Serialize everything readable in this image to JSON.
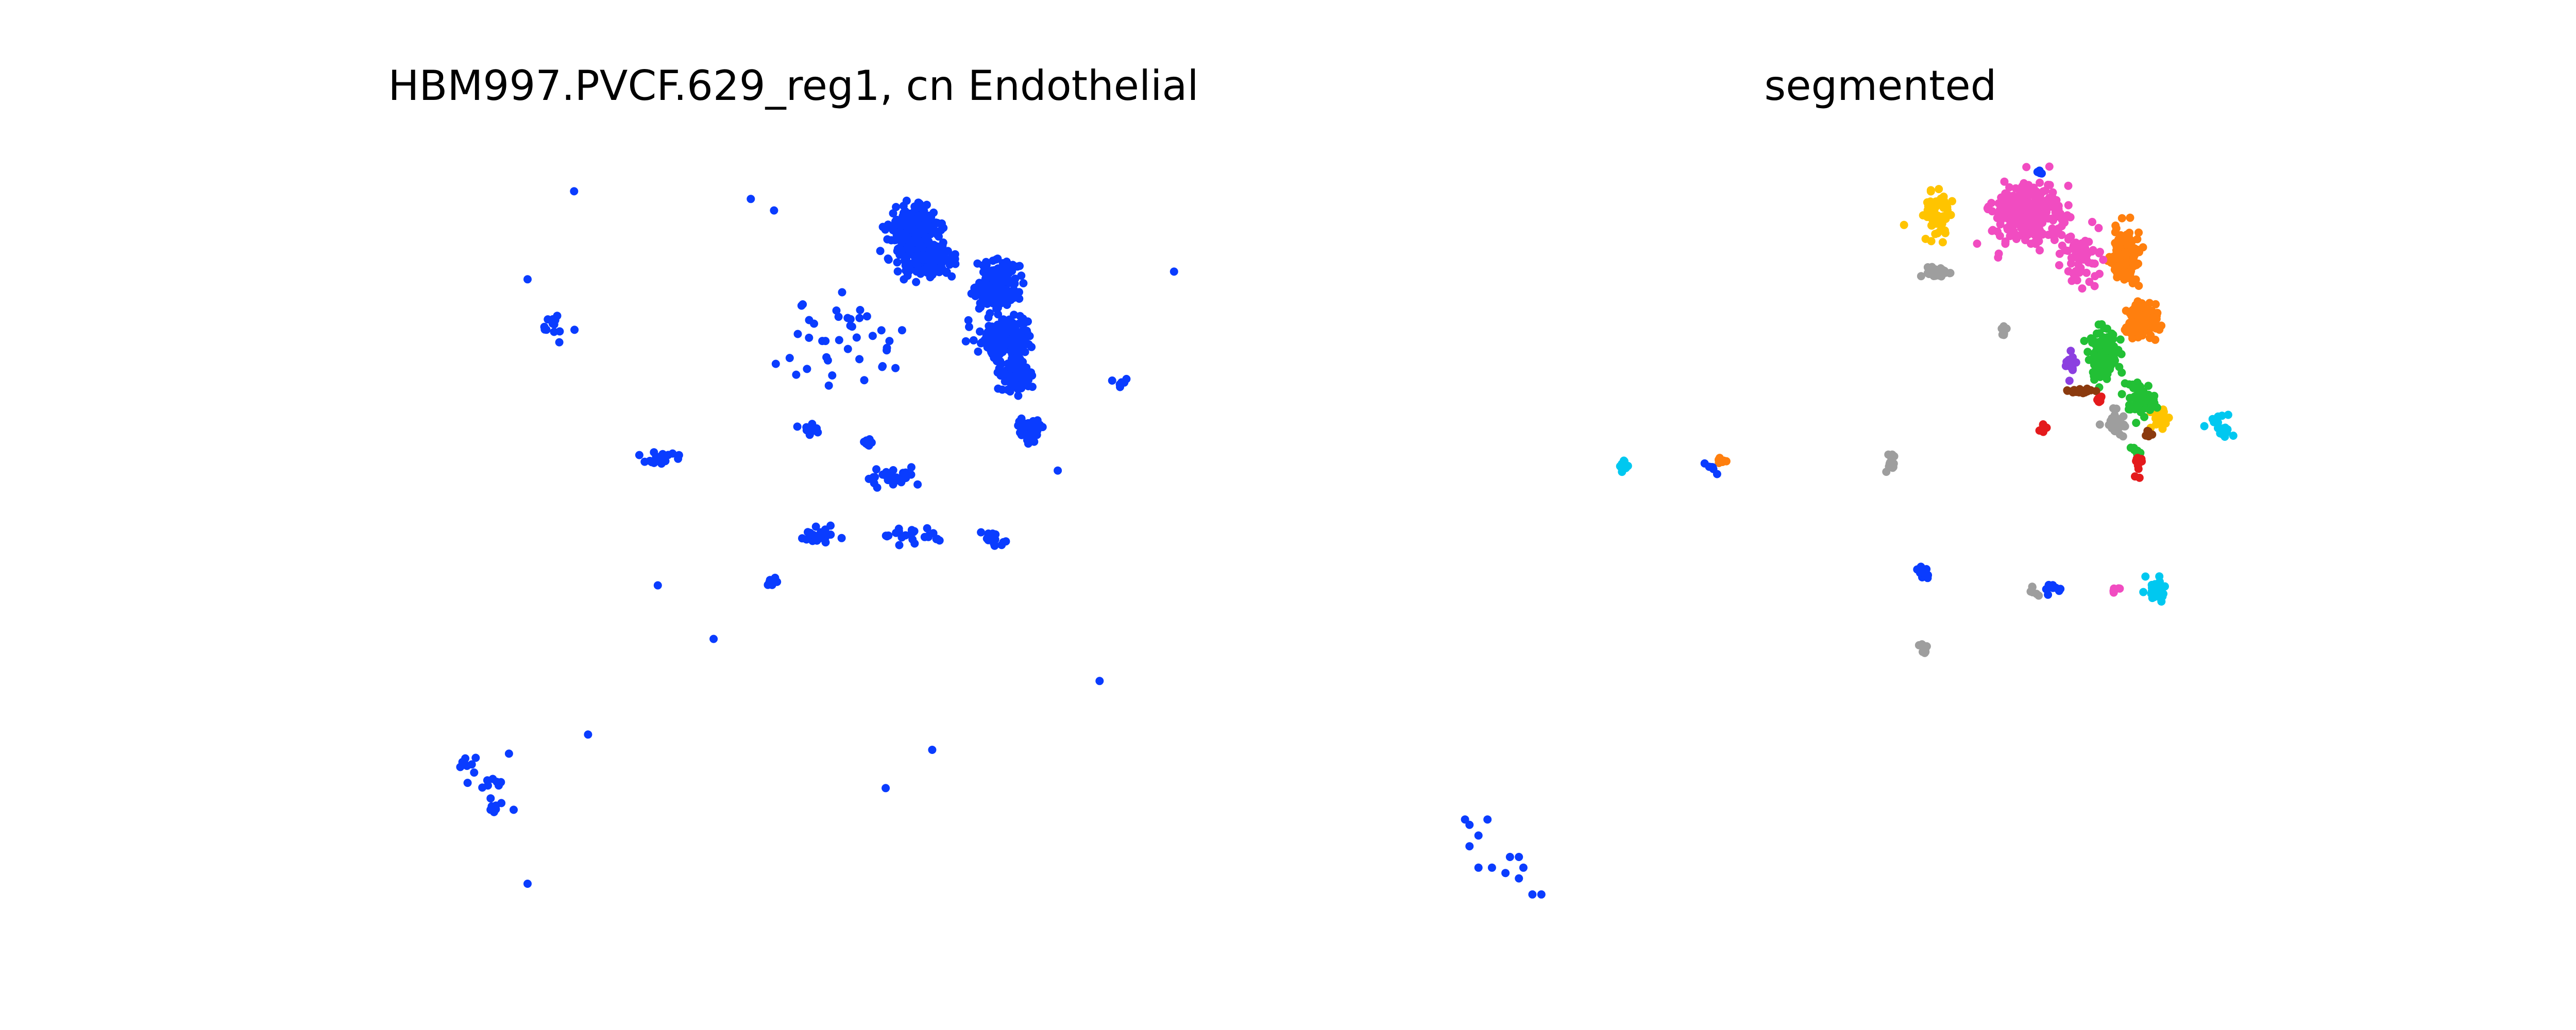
{
  "chart_data": [
    {
      "type": "scatter",
      "title": "HBM997.PVCF.629_reg1, cn Endothelial",
      "xlabel": "",
      "ylabel": "",
      "grid": false,
      "series": [
        {
          "color": "#0a3cff",
          "clusters": [
            {
              "c": [
                0.0,
                0.3
              ],
              "s": [
                0.05,
                0.05
              ],
              "n": 260
            },
            {
              "c": [
                0.03,
                0.22
              ],
              "s": [
                0.05,
                0.04
              ],
              "n": 140
            },
            {
              "c": [
                0.18,
                0.15
              ],
              "s": [
                0.04,
                0.06
              ],
              "n": 220
            },
            {
              "c": [
                0.2,
                0.02
              ],
              "s": [
                0.05,
                0.05
              ],
              "n": 160
            },
            {
              "c": [
                0.22,
                -0.08
              ],
              "s": [
                0.03,
                0.04
              ],
              "n": 90
            },
            {
              "c": [
                0.25,
                -0.22
              ],
              "s": [
                0.02,
                0.03
              ],
              "n": 60
            },
            {
              "c": [
                -0.15,
                0.0
              ],
              "s": [
                0.12,
                0.1
              ],
              "n": 40
            },
            {
              "c": [
                -0.22,
                -0.22
              ],
              "s": [
                0.02,
                0.01
              ],
              "n": 18
            },
            {
              "c": [
                -0.1,
                -0.26
              ],
              "s": [
                0.01,
                0.01
              ],
              "n": 10
            },
            {
              "c": [
                -0.04,
                -0.35
              ],
              "s": [
                0.06,
                0.02
              ],
              "n": 30
            },
            {
              "c": [
                -0.2,
                -0.5
              ],
              "s": [
                0.04,
                0.02
              ],
              "n": 25
            },
            {
              "c": [
                0.0,
                -0.5
              ],
              "s": [
                0.05,
                0.02
              ],
              "n": 24
            },
            {
              "c": [
                0.17,
                -0.51
              ],
              "s": [
                0.02,
                0.02
              ],
              "n": 18
            },
            {
              "c": [
                -0.55,
                -0.3
              ],
              "s": [
                0.05,
                0.02
              ],
              "n": 18
            },
            {
              "c": [
                -0.77,
                0.05
              ],
              "s": [
                0.05,
                0.04
              ],
              "n": 14
            },
            {
              "c": [
                -0.3,
                -0.62
              ],
              "s": [
                0.02,
                0.01
              ],
              "n": 6
            },
            {
              "c": [
                -0.9,
                -1.15
              ],
              "s": [
                0.02,
                0.02
              ],
              "n": 6
            },
            {
              "c": [
                -0.95,
                -1.12
              ],
              "s": [
                0.03,
                0.05
              ],
              "n": 10
            },
            {
              "c": [
                -0.9,
                -1.2
              ],
              "s": [
                0.03,
                0.02
              ],
              "n": 8
            },
            {
              "c": [
                0.45,
                -0.1
              ],
              "s": [
                0.02,
                0.02
              ],
              "n": 6
            }
          ],
          "points": [
            [
              -0.35,
              0.38
            ],
            [
              -0.3,
              0.35
            ],
            [
              -0.73,
              0.4
            ],
            [
              -0.83,
              0.17
            ],
            [
              -0.43,
              -0.77
            ],
            [
              0.31,
              -0.33
            ],
            [
              0.4,
              -0.88
            ],
            [
              0.04,
              -1.06
            ],
            [
              -0.83,
              -1.41
            ],
            [
              -0.06,
              -1.16
            ],
            [
              -0.87,
              -1.07
            ],
            [
              -0.55,
              -0.63
            ],
            [
              0.56,
              0.19
            ],
            [
              -0.7,
              -1.02
            ]
          ]
        }
      ],
      "xlim": [
        -1.2,
        0.65
      ],
      "ylim": [
        -1.55,
        0.55
      ]
    },
    {
      "type": "scatter",
      "title": "segmented",
      "xlabel": "",
      "ylabel": "",
      "grid": false,
      "series": [
        {
          "color": "#ff7f0e",
          "clusters": [
            {
              "c": [
                0.22,
                0.22
              ],
              "s": [
                0.03,
                0.05
              ],
              "n": 120
            },
            {
              "c": [
                0.26,
                0.1
              ],
              "s": [
                0.03,
                0.03
              ],
              "n": 140
            },
            {
              "c": [
                -0.68,
                -0.16
              ],
              "s": [
                0.01,
                0.01
              ],
              "n": 8
            }
          ]
        },
        {
          "color": "#f14cc1",
          "clusters": [
            {
              "c": [
                0.0,
                0.3
              ],
              "s": [
                0.07,
                0.05
              ],
              "n": 300
            },
            {
              "c": [
                0.12,
                0.22
              ],
              "s": [
                0.04,
                0.04
              ],
              "n": 60
            },
            {
              "c": [
                0.2,
                -0.4
              ],
              "s": [
                0.01,
                0.01
              ],
              "n": 6
            }
          ]
        },
        {
          "color": "#ffc400",
          "clusters": [
            {
              "c": [
                -0.2,
                0.3
              ],
              "s": [
                0.03,
                0.04
              ],
              "n": 60
            },
            {
              "c": [
                0.3,
                -0.08
              ],
              "s": [
                0.02,
                0.02
              ],
              "n": 24
            }
          ]
        },
        {
          "color": "#22c035",
          "clusters": [
            {
              "c": [
                0.17,
                0.04
              ],
              "s": [
                0.03,
                0.04
              ],
              "n": 120
            },
            {
              "c": [
                0.25,
                -0.05
              ],
              "s": [
                0.03,
                0.03
              ],
              "n": 60
            },
            {
              "c": [
                0.24,
                -0.14
              ],
              "s": [
                0.01,
                0.01
              ],
              "n": 8
            }
          ]
        },
        {
          "color": "#8c3fe0",
          "clusters": [
            {
              "c": [
                0.1,
                0.02
              ],
              "s": [
                0.01,
                0.02
              ],
              "n": 14
            }
          ]
        },
        {
          "color": "#8b3a0e",
          "clusters": [
            {
              "c": [
                0.12,
                -0.03
              ],
              "s": [
                0.03,
                0.005
              ],
              "n": 20
            },
            {
              "c": [
                0.27,
                -0.11
              ],
              "s": [
                0.01,
                0.01
              ],
              "n": 6
            }
          ]
        },
        {
          "color": "#e41a1c",
          "clusters": [
            {
              "c": [
                0.16,
                -0.05
              ],
              "s": [
                0.01,
                0.01
              ],
              "n": 8
            },
            {
              "c": [
                0.04,
                -0.1
              ],
              "s": [
                0.01,
                0.01
              ],
              "n": 8
            },
            {
              "c": [
                0.25,
                -0.17
              ],
              "s": [
                0.01,
                0.02
              ],
              "n": 10
            }
          ]
        },
        {
          "color": "#9e9e9e",
          "clusters": [
            {
              "c": [
                -0.2,
                0.19
              ],
              "s": [
                0.03,
                0.01
              ],
              "n": 30
            },
            {
              "c": [
                -0.05,
                0.08
              ],
              "s": [
                0.01,
                0.01
              ],
              "n": 6
            },
            {
              "c": [
                0.2,
                -0.09
              ],
              "s": [
                0.02,
                0.02
              ],
              "n": 40
            },
            {
              "c": [
                -0.3,
                -0.17
              ],
              "s": [
                0.01,
                0.02
              ],
              "n": 16
            },
            {
              "c": [
                0.02,
                -0.4
              ],
              "s": [
                0.01,
                0.01
              ],
              "n": 6
            },
            {
              "c": [
                -0.23,
                -0.51
              ],
              "s": [
                0.01,
                0.01
              ],
              "n": 8
            }
          ]
        },
        {
          "color": "#00c8f0",
          "clusters": [
            {
              "c": [
                0.44,
                -0.1
              ],
              "s": [
                0.02,
                0.02
              ],
              "n": 20
            },
            {
              "c": [
                0.29,
                -0.4
              ],
              "s": [
                0.02,
                0.02
              ],
              "n": 30
            },
            {
              "c": [
                -0.9,
                -0.17
              ],
              "s": [
                0.01,
                0.01
              ],
              "n": 10
            }
          ]
        },
        {
          "color": "#0a3cff",
          "clusters": [
            {
              "c": [
                -0.23,
                -0.37
              ],
              "s": [
                0.02,
                0.01
              ],
              "n": 14
            },
            {
              "c": [
                0.06,
                -0.4
              ],
              "s": [
                0.02,
                0.01
              ],
              "n": 10
            },
            {
              "c": [
                -0.7,
                -0.17
              ],
              "s": [
                0.01,
                0.01
              ],
              "n": 6
            },
            {
              "c": [
                0.03,
                0.38
              ],
              "s": [
                0.01,
                0.01
              ],
              "n": 6
            }
          ],
          "points": [
            [
              -1.25,
              -0.83
            ],
            [
              -1.22,
              -0.86
            ],
            [
              -1.24,
              -0.88
            ],
            [
              -1.22,
              -0.92
            ],
            [
              -1.19,
              -0.92
            ],
            [
              -1.16,
              -0.93
            ],
            [
              -1.15,
              -0.9
            ],
            [
              -1.13,
              -0.9
            ],
            [
              -1.12,
              -0.92
            ],
            [
              -1.13,
              -0.94
            ],
            [
              -1.1,
              -0.97
            ],
            [
              -1.08,
              -0.97
            ],
            [
              -1.24,
              -0.84
            ],
            [
              -1.2,
              -0.83
            ]
          ]
        }
      ],
      "xlim": [
        -1.3,
        0.65
      ],
      "ylim": [
        -1.05,
        0.45
      ]
    }
  ]
}
